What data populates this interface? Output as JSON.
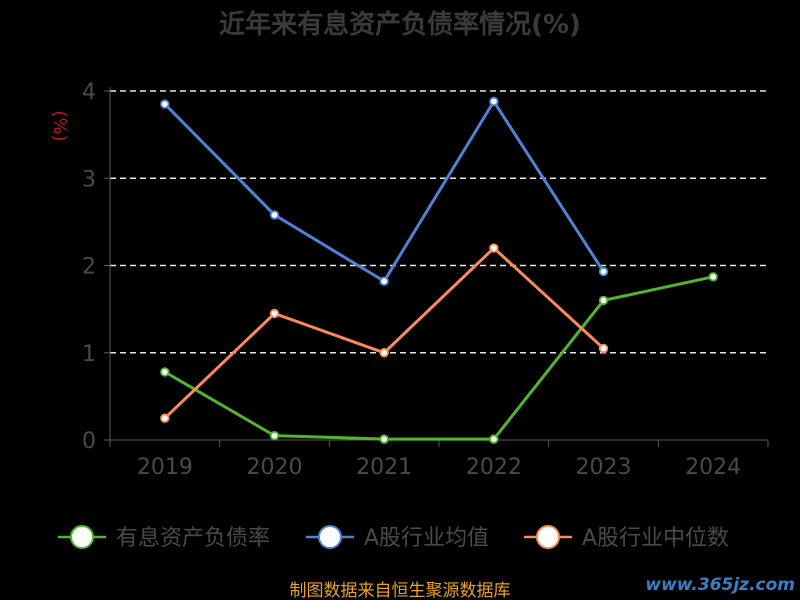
{
  "chart_data": {
    "type": "line",
    "title": "近年来有息资产负债率情况(%)",
    "ylabel": "(%)",
    "categories": [
      "2019",
      "2020",
      "2021",
      "2022",
      "2023",
      "2024"
    ],
    "ylim": [
      0,
      4
    ],
    "yticks": [
      "0",
      "1",
      "2",
      "3",
      "4"
    ],
    "grid": true,
    "legend_position": "bottom",
    "series": [
      {
        "name": "有息资产负债率",
        "color": "#52b52e",
        "values": [
          0.78,
          0.05,
          0.01,
          0.01,
          1.6,
          1.87
        ]
      },
      {
        "name": "A股行业均值",
        "color": "#4f82d6",
        "values": [
          3.85,
          2.58,
          1.82,
          3.88,
          1.93,
          null
        ]
      },
      {
        "name": "A股行业中位数",
        "color": "#f98a5a",
        "values": [
          0.25,
          1.45,
          1.0,
          2.2,
          1.05,
          null
        ]
      }
    ]
  },
  "footer": {
    "source": "制图数据来自恒生聚源数据库",
    "watermark": "www.365jz.com"
  }
}
